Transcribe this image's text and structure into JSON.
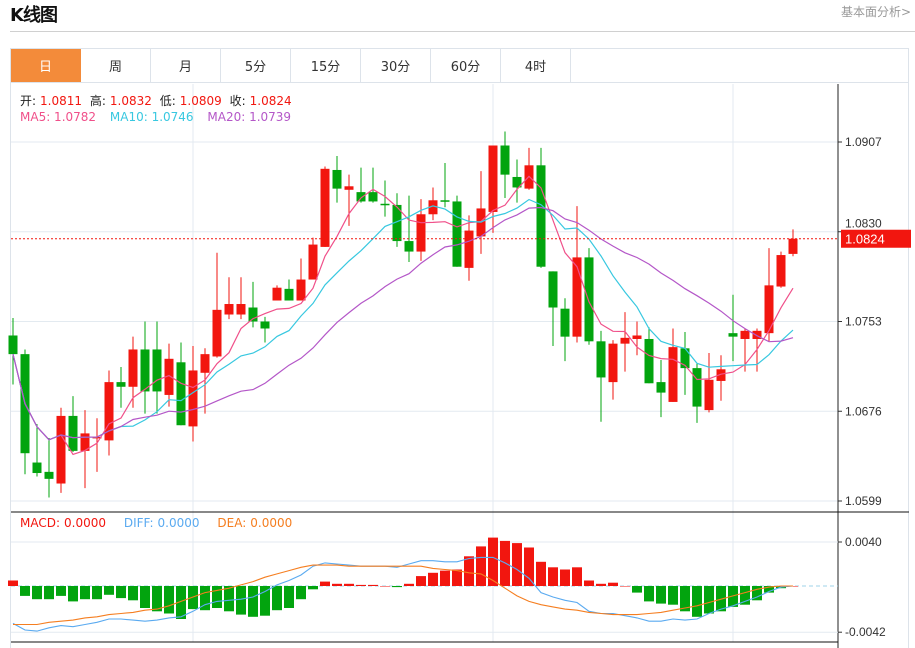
{
  "header": {
    "title": "K线图",
    "fundamental_link": "基本面分析>"
  },
  "tabs": [
    {
      "label": "日",
      "active": true
    },
    {
      "label": "周"
    },
    {
      "label": "月"
    },
    {
      "label": "5分"
    },
    {
      "label": "15分"
    },
    {
      "label": "30分"
    },
    {
      "label": "60分"
    },
    {
      "label": "4时"
    }
  ],
  "ohlc_info": {
    "open_label": "开:",
    "open": "1.0811",
    "high_label": "高:",
    "high": "1.0832",
    "low_label": "低:",
    "low": "1.0809",
    "close_label": "收:",
    "close": "1.0824"
  },
  "ma_info": {
    "ma5": "MA5: 1.0782",
    "ma10": "MA10: 1.0746",
    "ma20": "MA20: 1.0739"
  },
  "macd_info": {
    "macd_label": "MACD:",
    "macd": "0.0000",
    "diff_label": "DIFF:",
    "diff": "0.0000",
    "dea_label": "DEA:",
    "dea": "0.0000"
  },
  "colors": {
    "up": "#f2160f",
    "down": "#02a40e",
    "ma5": "#f0508a",
    "ma10": "#38c8e0",
    "ma20": "#b457c8",
    "diff": "#5aaaf0",
    "dea": "#f57e20",
    "accent": "#f38b3a"
  },
  "chart_data": [
    {
      "type": "candlestick",
      "title": "K线图 日",
      "price_axis": {
        "ticks": [
          "1.0907",
          "1.0830",
          "1.0753",
          "1.0676",
          "1.0599"
        ],
        "range": [
          1.0599,
          1.0907
        ]
      },
      "current_price": "1.0824",
      "ohlc": [
        [
          1.0741,
          1.0756,
          1.0699,
          1.0725
        ],
        [
          1.0725,
          1.0729,
          1.0622,
          1.064
        ],
        [
          1.0632,
          1.0665,
          1.062,
          1.0623
        ],
        [
          1.0624,
          1.0653,
          1.0602,
          1.0618
        ],
        [
          1.0614,
          1.0679,
          1.0606,
          1.0672
        ],
        [
          1.0672,
          1.0689,
          1.0641,
          1.0642
        ],
        [
          1.0642,
          1.0677,
          1.061,
          1.0657
        ],
        [
          1.0653,
          1.067,
          1.0624,
          1.0654
        ],
        [
          1.0651,
          1.0711,
          1.0638,
          1.0701
        ],
        [
          1.0701,
          1.0714,
          1.0679,
          1.0697
        ],
        [
          1.0697,
          1.074,
          1.0679,
          1.0729
        ],
        [
          1.0729,
          1.0753,
          1.0674,
          1.0693
        ],
        [
          1.0729,
          1.0753,
          1.0674,
          1.0693
        ],
        [
          1.069,
          1.0734,
          1.068,
          1.0721
        ],
        [
          1.0718,
          1.0735,
          1.0664,
          1.0664
        ],
        [
          1.0663,
          1.0732,
          1.065,
          1.0711
        ],
        [
          1.0709,
          1.073,
          1.0674,
          1.0725
        ],
        [
          1.0723,
          1.0812,
          1.0722,
          1.0763
        ],
        [
          1.0759,
          1.0791,
          1.0755,
          1.0768
        ],
        [
          1.0759,
          1.0791,
          1.0755,
          1.0768
        ],
        [
          1.0765,
          1.0787,
          1.0748,
          1.0753
        ],
        [
          1.0753,
          1.0757,
          1.0735,
          1.0747
        ],
        [
          1.0771,
          1.0784,
          1.0771,
          1.0782
        ],
        [
          1.0781,
          1.0789,
          1.0771,
          1.0771
        ],
        [
          1.0771,
          1.0807,
          1.0771,
          1.0789
        ],
        [
          1.0789,
          1.0825,
          1.0789,
          1.0819
        ],
        [
          1.0817,
          1.0886,
          1.0817,
          1.0884
        ],
        [
          1.0883,
          1.0895,
          1.0855,
          1.0867
        ],
        [
          1.0866,
          1.0879,
          1.0835,
          1.0869
        ],
        [
          1.0864,
          1.0885,
          1.0855,
          1.0856
        ],
        [
          1.0864,
          1.0885,
          1.0855,
          1.0856
        ],
        [
          1.0854,
          1.0874,
          1.0843,
          1.0853
        ],
        [
          1.0853,
          1.0863,
          1.0817,
          1.0822
        ],
        [
          1.0822,
          1.0861,
          1.0804,
          1.0813
        ],
        [
          1.0813,
          1.0858,
          1.0805,
          1.0845
        ],
        [
          1.0845,
          1.0868,
          1.084,
          1.0857
        ],
        [
          1.0857,
          1.0889,
          1.0851,
          1.0856
        ],
        [
          1.0856,
          1.0861,
          1.08,
          1.08
        ],
        [
          1.0799,
          1.0844,
          1.0788,
          1.0831
        ],
        [
          1.0826,
          1.0882,
          1.0811,
          1.085
        ],
        [
          1.0847,
          1.0904,
          1.0829,
          1.0904
        ],
        [
          1.0904,
          1.0916,
          1.0859,
          1.0879
        ],
        [
          1.0877,
          1.0892,
          1.0855,
          1.0868
        ],
        [
          1.0867,
          1.0902,
          1.0866,
          1.0887
        ],
        [
          1.0887,
          1.0902,
          1.0799,
          1.08
        ],
        [
          1.0796,
          1.0796,
          1.0732,
          1.0765
        ],
        [
          1.0764,
          1.0773,
          1.0719,
          1.074
        ],
        [
          1.074,
          1.0852,
          1.0735,
          1.0808
        ],
        [
          1.0808,
          1.0816,
          1.0733,
          1.0736
        ],
        [
          1.0736,
          1.0745,
          1.0667,
          1.0705
        ],
        [
          1.0701,
          1.0737,
          1.0686,
          1.0734
        ],
        [
          1.0734,
          1.0761,
          1.071,
          1.0739
        ],
        [
          1.0738,
          1.0753,
          1.0724,
          1.0741
        ],
        [
          1.0738,
          1.0748,
          1.07,
          1.07
        ],
        [
          1.0701,
          1.072,
          1.0671,
          1.0692
        ],
        [
          1.0684,
          1.0747,
          1.0684,
          1.0731
        ],
        [
          1.073,
          1.0744,
          1.069,
          1.0713
        ],
        [
          1.0713,
          1.0717,
          1.0666,
          1.068
        ],
        [
          1.0677,
          1.0726,
          1.0675,
          1.0703
        ],
        [
          1.0702,
          1.0724,
          1.0685,
          1.0712
        ],
        [
          1.0743,
          1.0776,
          1.0719,
          1.074
        ],
        [
          1.0738,
          1.0747,
          1.071,
          1.0745
        ],
        [
          1.0738,
          1.0747,
          1.071,
          1.0745
        ],
        [
          1.0743,
          1.0816,
          1.0736,
          1.0784
        ],
        [
          1.0783,
          1.0813,
          1.0782,
          1.081
        ],
        [
          1.0811,
          1.0832,
          1.0809,
          1.0824
        ]
      ],
      "ma_periods": [
        5,
        10,
        20
      ]
    },
    {
      "type": "bar+line",
      "title": "MACD",
      "axis": {
        "ticks": [
          "0.0040",
          "-0.0042"
        ],
        "range": [
          -0.0042,
          0.004
        ]
      },
      "macd": [
        0.0005,
        -0.0009,
        -0.0012,
        -0.0012,
        -0.0009,
        -0.0014,
        -0.0012,
        -0.0012,
        -0.0008,
        -0.0011,
        -0.0013,
        -0.002,
        -0.0023,
        -0.0025,
        -0.003,
        -0.0021,
        -0.0022,
        -0.002,
        -0.0023,
        -0.0026,
        -0.0028,
        -0.0027,
        -0.0022,
        -0.002,
        -0.0012,
        -0.0003,
        0.0004,
        0.0002,
        0.0002,
        0.0001,
        0.0001,
        0.0,
        -0.0001,
        0.0002,
        0.0009,
        0.0012,
        0.0014,
        0.0015,
        0.0027,
        0.0036,
        0.0044,
        0.0041,
        0.0039,
        0.0035,
        0.0022,
        0.0017,
        0.0015,
        0.0017,
        0.0005,
        0.0002,
        0.0003,
        0.0,
        -0.0006,
        -0.0014,
        -0.0016,
        -0.0017,
        -0.0023,
        -0.0028,
        -0.0025,
        -0.0023,
        -0.0019,
        -0.0017,
        -0.0013,
        -0.0006,
        -0.0002,
        0.0
      ],
      "diff": [
        -0.0034,
        -0.004,
        -0.0041,
        -0.0038,
        -0.0036,
        -0.0037,
        -0.0035,
        -0.0033,
        -0.003,
        -0.003,
        -0.0031,
        -0.0032,
        -0.0031,
        -0.0029,
        -0.0028,
        -0.0023,
        -0.0017,
        -0.0014,
        -0.0013,
        -0.0012,
        -0.001,
        -0.0005,
        0.0001,
        0.0005,
        0.001,
        0.0018,
        0.0021,
        0.002,
        0.0019,
        0.0018,
        0.0018,
        0.0018,
        0.0017,
        0.002,
        0.0023,
        0.0023,
        0.0022,
        0.0022,
        0.0025,
        0.0026,
        0.0026,
        0.0021,
        0.0015,
        0.0007,
        -0.0006,
        -0.001,
        -0.0013,
        -0.0015,
        -0.0023,
        -0.0025,
        -0.0025,
        -0.0027,
        -0.0029,
        -0.0032,
        -0.0032,
        -0.003,
        -0.0031,
        -0.003,
        -0.0025,
        -0.0021,
        -0.0018,
        -0.0014,
        -0.001,
        -0.0005,
        -0.0001,
        0.0
      ],
      "dea": [
        -0.0035,
        -0.0035,
        -0.0035,
        -0.0033,
        -0.0032,
        -0.0031,
        -0.0029,
        -0.0028,
        -0.0026,
        -0.0025,
        -0.0024,
        -0.0022,
        -0.0021,
        -0.0018,
        -0.0014,
        -0.001,
        -0.0006,
        -0.0004,
        -0.0002,
        0.0001,
        0.0004,
        0.0008,
        0.0011,
        0.0014,
        0.0017,
        0.0019,
        0.0019,
        0.0019,
        0.0018,
        0.0018,
        0.0018,
        0.0018,
        0.0018,
        0.0018,
        0.0018,
        0.0016,
        0.0015,
        0.0014,
        0.0012,
        0.0011,
        0.0005,
        -0.0002,
        -0.0009,
        -0.0014,
        -0.0017,
        -0.0019,
        -0.0021,
        -0.0022,
        -0.0024,
        -0.0025,
        -0.0026,
        -0.0026,
        -0.0026,
        -0.0025,
        -0.0024,
        -0.0022,
        -0.002,
        -0.0018,
        -0.0015,
        -0.0012,
        -0.0009,
        -0.0006,
        -0.0003,
        -0.0001,
        0.0,
        0.0
      ]
    }
  ]
}
